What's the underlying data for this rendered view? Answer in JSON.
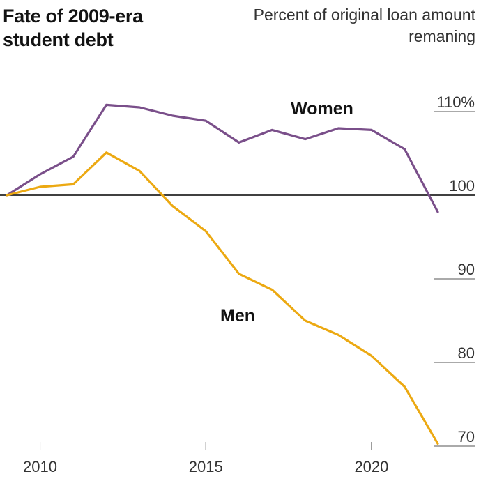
{
  "title": "Fate of 2009-era student debt",
  "subtitle": "Percent of original loan amount remaning",
  "chart_data": {
    "type": "line",
    "title": "Fate of 2009-era student debt",
    "ylabel": "Percent of original loan amount remaning",
    "xlim": [
      2009,
      2022
    ],
    "ylim": [
      70,
      110
    ],
    "baseline": 100,
    "x_ticks": [
      2010,
      2015,
      2020
    ],
    "x_tick_labels": [
      "2010",
      "2015",
      "2020"
    ],
    "y_ticks": [
      110,
      100,
      90,
      80,
      70
    ],
    "y_tick_labels": [
      "110%",
      "100",
      "90",
      "80",
      "70"
    ],
    "legend": "none (direct labels)",
    "grid": false,
    "x": [
      2009,
      2010,
      2011,
      2012,
      2013,
      2014,
      2015,
      2016,
      2017,
      2018,
      2019,
      2020,
      2021,
      2022
    ],
    "series": [
      {
        "name": "Women",
        "color": "#7a4f8a",
        "values": [
          100.0,
          102.5,
          104.6,
          110.8,
          110.5,
          109.5,
          108.9,
          106.3,
          107.8,
          106.7,
          108.0,
          107.8,
          105.5,
          98.0
        ]
      },
      {
        "name": "Men",
        "color": "#eca912",
        "values": [
          100.0,
          101.0,
          101.3,
          105.1,
          102.9,
          98.7,
          95.7,
          90.6,
          88.7,
          85.0,
          83.3,
          80.8,
          77.1,
          70.3
        ]
      }
    ]
  }
}
